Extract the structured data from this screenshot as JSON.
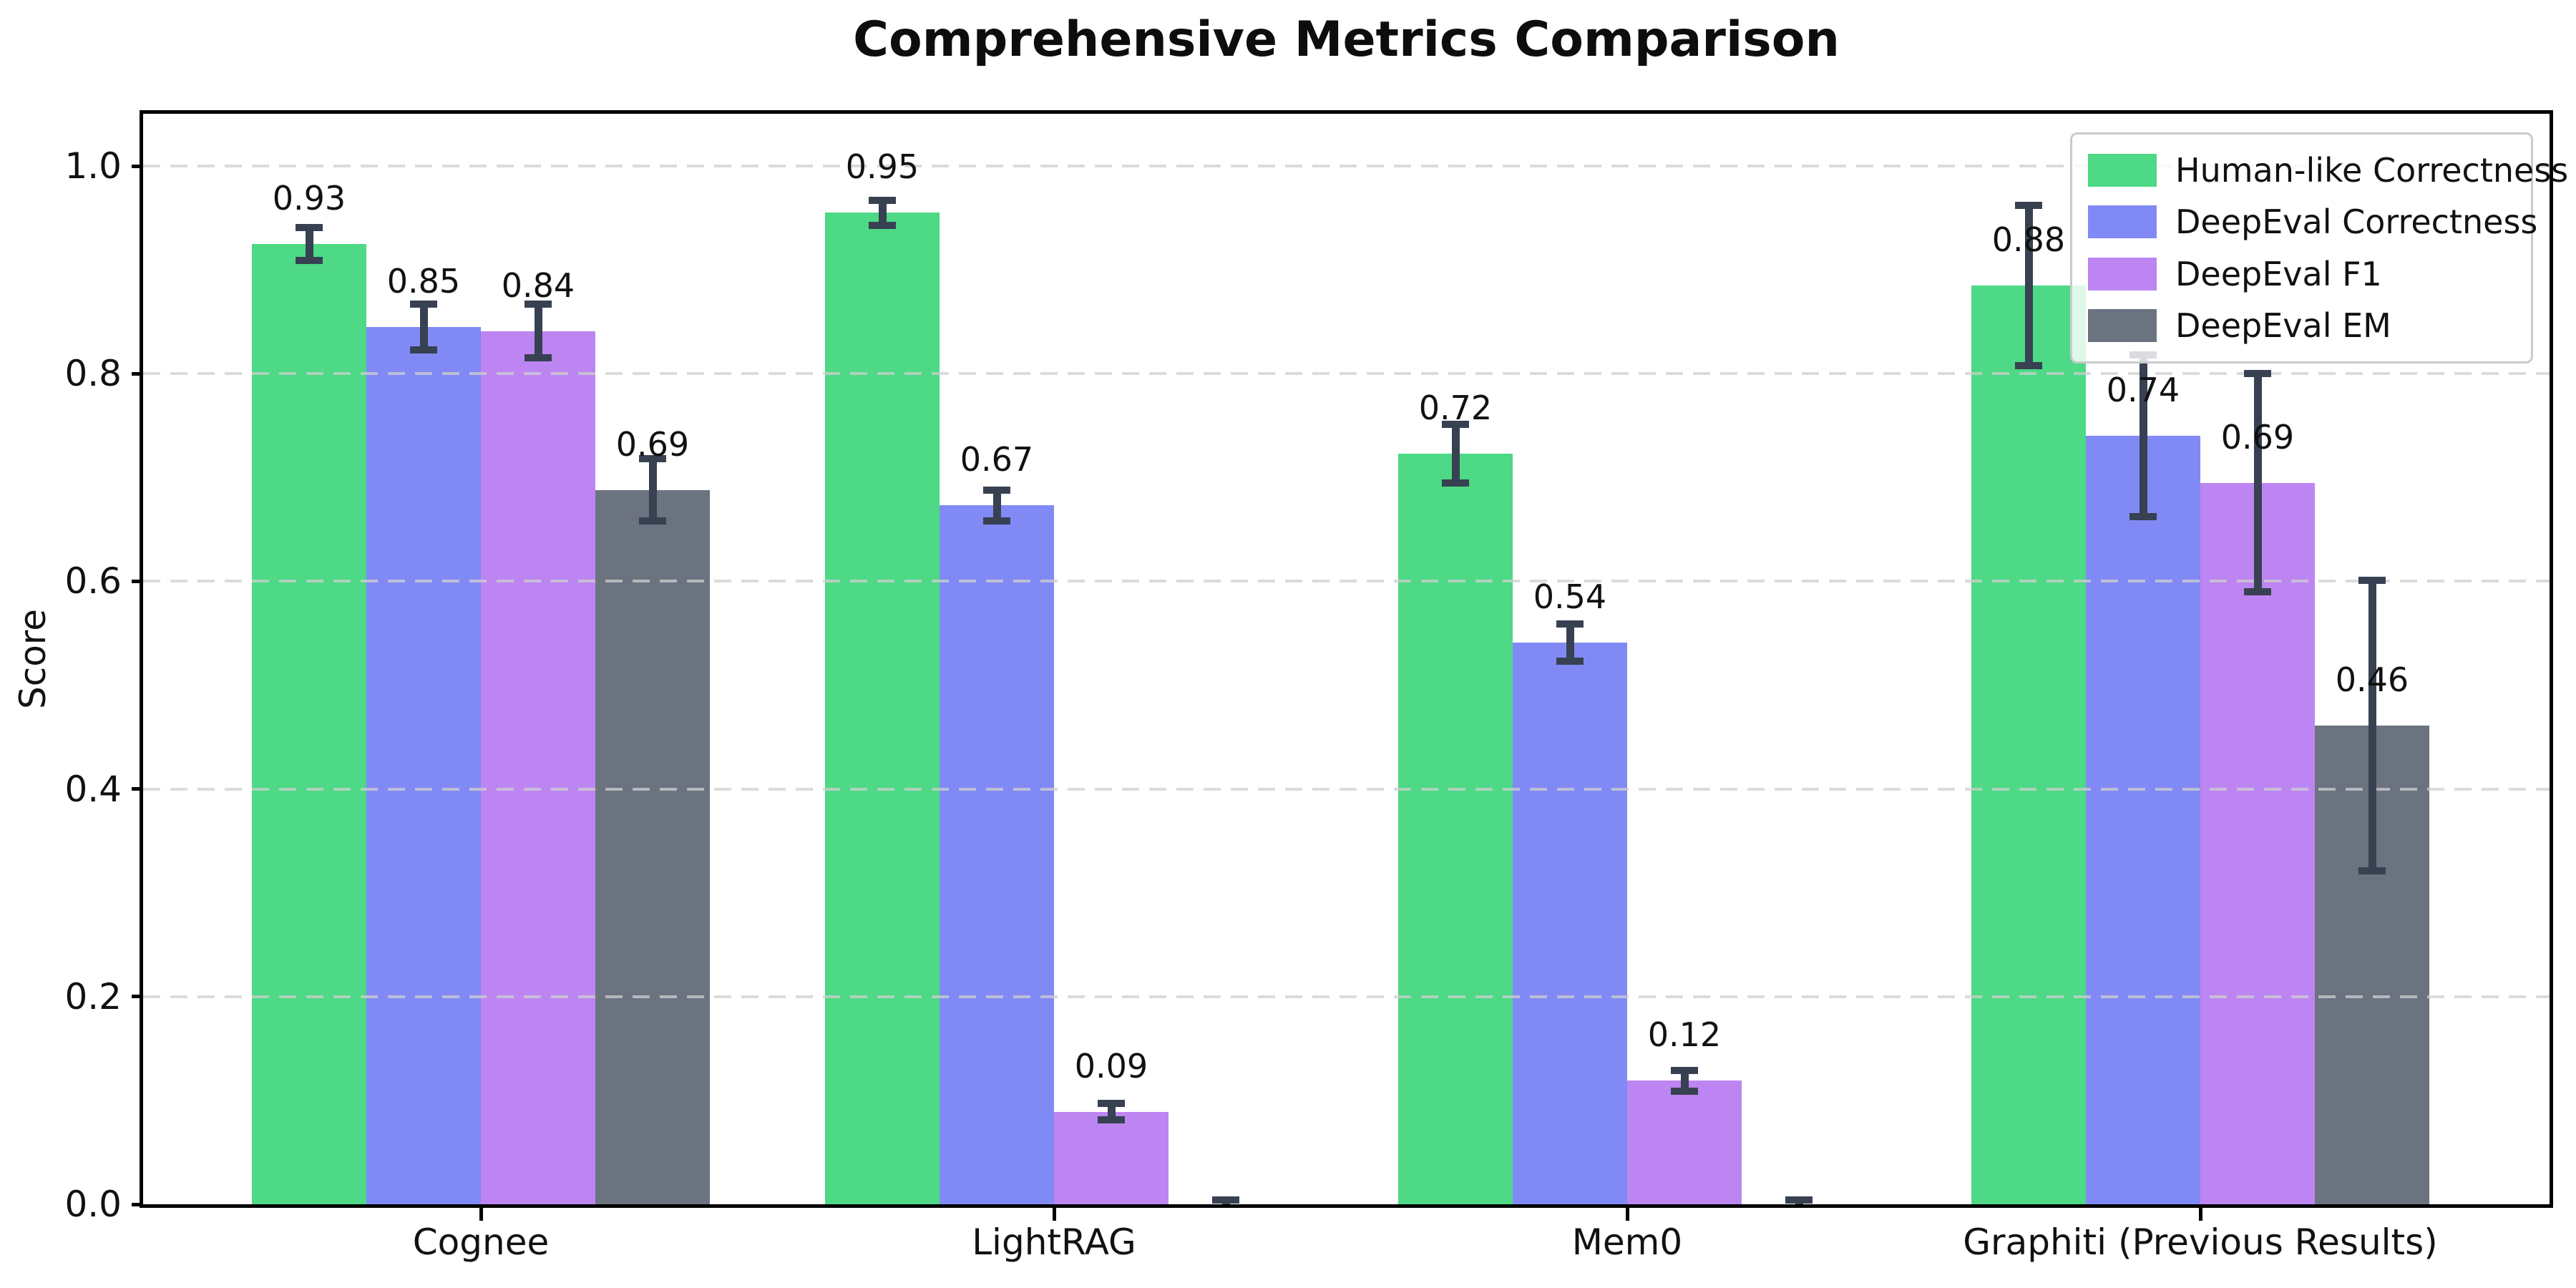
{
  "title": "Comprehensive Metrics Comparison",
  "y_axis": {
    "label": "Score"
  },
  "colors": {
    "background": "#ffffff",
    "error_bar": "#374151",
    "gridline": "#cfcfcf",
    "spine": "#000000",
    "legend_border": "#cbcbcb",
    "text": "#111111"
  },
  "legend": {
    "entries": [
      "Human-like Correctness",
      "DeepEval Correctness",
      "DeepEval F1",
      "DeepEval EM"
    ],
    "position": "upper right"
  },
  "chart_data": {
    "type": "bar",
    "title": "Comprehensive Metrics Comparison",
    "xlabel": "",
    "ylabel": "Score",
    "ylim": [
      0,
      1.05
    ],
    "yticks": [
      0.0,
      0.2,
      0.4,
      0.6,
      0.8,
      1.0
    ],
    "ytick_labels": [
      "0.0",
      "0.2",
      "0.4",
      "0.6",
      "0.8",
      "1.0"
    ],
    "grid": "horizontal-dashed",
    "legend_position": "upper right",
    "categories": [
      "Cognee",
      "LightRAG",
      "Mem0",
      "Graphiti (Previous Results)"
    ],
    "series": [
      {
        "name": "Human-like Correctness",
        "color": "#4dd985",
        "values": [
          0.925,
          0.955,
          0.723,
          0.885
        ],
        "errors": [
          0.016,
          0.012,
          0.028,
          0.077
        ],
        "labels": [
          "0.93",
          "0.95",
          "0.72",
          "0.88"
        ]
      },
      {
        "name": "DeepEval Correctness",
        "color": "#818af4",
        "values": [
          0.845,
          0.673,
          0.541,
          0.74
        ],
        "errors": [
          0.022,
          0.015,
          0.018,
          0.078
        ],
        "labels": [
          "0.85",
          "0.67",
          "0.54",
          "0.74"
        ]
      },
      {
        "name": "DeepEval F1",
        "color": "#bd85f2",
        "values": [
          0.841,
          0.089,
          0.119,
          0.695
        ],
        "errors": [
          0.026,
          0.008,
          0.01,
          0.105
        ],
        "labels": [
          "0.84",
          "0.09",
          "0.12",
          "0.69"
        ]
      },
      {
        "name": "DeepEval EM",
        "color": "#6b7280",
        "values": [
          0.688,
          0.0,
          0.0,
          0.461
        ],
        "errors": [
          0.03,
          0.004,
          0.004,
          0.14
        ],
        "labels": [
          "0.69",
          null,
          null,
          "0.46"
        ]
      }
    ]
  }
}
